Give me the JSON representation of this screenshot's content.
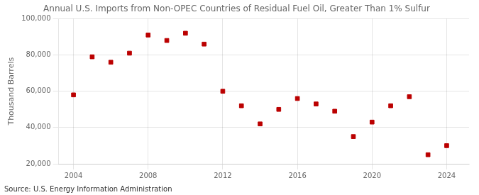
{
  "chart_data": {
    "type": "scatter",
    "title": "Annual U.S. Imports from Non-OPEC Countries of Residual Fuel Oil, Greater Than 1% Sulfur",
    "ylabel": "Thousand Barrels",
    "annotations": [
      "Source: U.S. Energy Information Administration"
    ],
    "x": [
      2004,
      2005,
      2006,
      2007,
      2008,
      2009,
      2010,
      2011,
      2012,
      2013,
      2014,
      2015,
      2016,
      2017,
      2018,
      2019,
      2020,
      2021,
      2022,
      2023,
      2024
    ],
    "values": [
      58000,
      79000,
      76000,
      81000,
      91000,
      88000,
      92000,
      86000,
      60000,
      52000,
      42000,
      50000,
      56000,
      53000,
      49000,
      35000,
      43000,
      52000,
      57000,
      25000,
      30000
    ],
    "color": "#bb0000",
    "marker": "square",
    "xlim": [
      2003.2,
      2025.2
    ],
    "xticks": [
      2004,
      2008,
      2012,
      2016,
      2020,
      2024
    ],
    "ylim": [
      20000,
      100000
    ],
    "yticks": [
      {
        "value": 20000,
        "label": "20,000"
      },
      {
        "value": 40000,
        "label": "40,000"
      },
      {
        "value": 60000,
        "label": "60,000"
      },
      {
        "value": 80000,
        "label": "80,000"
      },
      {
        "value": 100000,
        "label": "100,000"
      }
    ],
    "grid": true
  }
}
